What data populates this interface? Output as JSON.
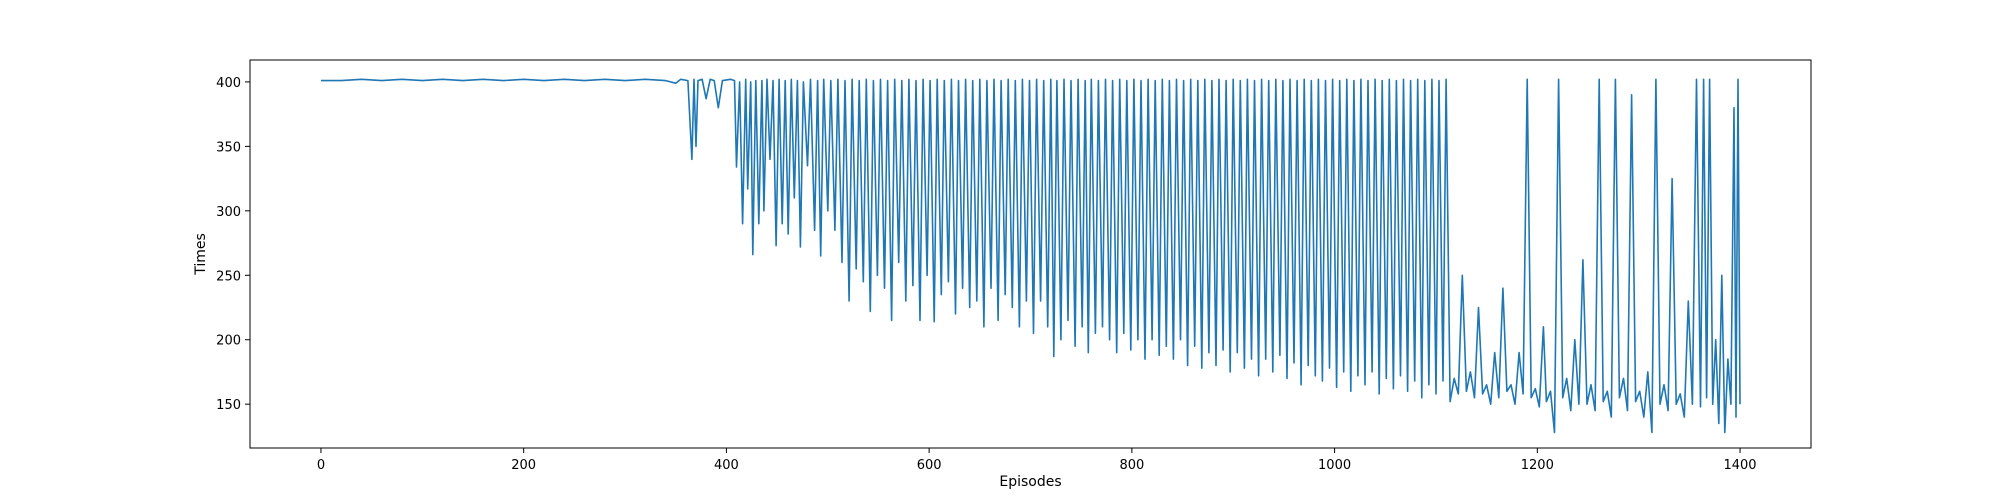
{
  "chart_data": {
    "type": "line",
    "title": "",
    "xlabel": "Episodes",
    "ylabel": "Times",
    "xlim": [
      -70,
      1470
    ],
    "ylim": [
      116,
      417
    ],
    "x_ticks": [
      0,
      200,
      400,
      600,
      800,
      1000,
      1200,
      1400
    ],
    "y_ticks": [
      150,
      200,
      250,
      300,
      350,
      400
    ],
    "grid": false,
    "legend": "none",
    "series": [
      {
        "color": "#1f77b4",
        "points": [
          [
            0,
            401
          ],
          [
            20,
            401
          ],
          [
            40,
            402
          ],
          [
            60,
            401
          ],
          [
            80,
            402
          ],
          [
            100,
            401
          ],
          [
            120,
            402
          ],
          [
            140,
            401
          ],
          [
            160,
            402
          ],
          [
            180,
            401
          ],
          [
            200,
            402
          ],
          [
            220,
            401
          ],
          [
            240,
            402
          ],
          [
            260,
            401
          ],
          [
            280,
            402
          ],
          [
            300,
            401
          ],
          [
            320,
            402
          ],
          [
            340,
            401
          ],
          [
            350,
            399
          ],
          [
            355,
            402
          ],
          [
            362,
            401
          ],
          [
            366,
            340
          ],
          [
            368,
            402
          ],
          [
            370,
            350
          ],
          [
            372,
            401
          ],
          [
            376,
            402
          ],
          [
            380,
            387
          ],
          [
            384,
            402
          ],
          [
            388,
            401
          ],
          [
            392,
            380
          ],
          [
            396,
            401
          ],
          [
            404,
            402
          ],
          [
            408,
            401
          ],
          [
            410,
            334
          ],
          [
            413,
            400
          ],
          [
            416,
            290
          ],
          [
            419,
            402
          ],
          [
            421,
            317
          ],
          [
            424,
            400
          ],
          [
            426,
            266
          ],
          [
            429,
            401
          ],
          [
            432,
            290
          ],
          [
            435,
            401
          ],
          [
            437,
            300
          ],
          [
            440,
            402
          ],
          [
            443,
            340
          ],
          [
            446,
            401
          ],
          [
            449,
            273
          ],
          [
            452,
            402
          ],
          [
            455,
            290
          ],
          [
            458,
            401
          ],
          [
            461,
            282
          ],
          [
            464,
            402
          ],
          [
            467,
            310
          ],
          [
            470,
            401
          ],
          [
            473,
            272
          ],
          [
            476,
            400
          ],
          [
            480,
            335
          ],
          [
            483,
            402
          ],
          [
            487,
            285
          ],
          [
            490,
            401
          ],
          [
            493,
            265
          ],
          [
            496,
            402
          ],
          [
            500,
            300
          ],
          [
            503,
            401
          ],
          [
            507,
            285
          ],
          [
            510,
            402
          ],
          [
            514,
            260
          ],
          [
            517,
            401
          ],
          [
            521,
            230
          ],
          [
            524,
            402
          ],
          [
            528,
            255
          ],
          [
            531,
            401
          ],
          [
            535,
            245
          ],
          [
            538,
            402
          ],
          [
            542,
            222
          ],
          [
            545,
            401
          ],
          [
            549,
            250
          ],
          [
            552,
            402
          ],
          [
            556,
            240
          ],
          [
            559,
            401
          ],
          [
            563,
            215
          ],
          [
            566,
            402
          ],
          [
            570,
            260
          ],
          [
            573,
            401
          ],
          [
            577,
            230
          ],
          [
            580,
            402
          ],
          [
            584,
            242
          ],
          [
            587,
            401
          ],
          [
            591,
            215
          ],
          [
            594,
            402
          ],
          [
            598,
            250
          ],
          [
            601,
            401
          ],
          [
            605,
            214
          ],
          [
            608,
            402
          ],
          [
            612,
            235
          ],
          [
            615,
            401
          ],
          [
            619,
            245
          ],
          [
            622,
            402
          ],
          [
            626,
            220
          ],
          [
            629,
            401
          ],
          [
            633,
            240
          ],
          [
            636,
            402
          ],
          [
            640,
            225
          ],
          [
            643,
            401
          ],
          [
            647,
            230
          ],
          [
            650,
            402
          ],
          [
            654,
            210
          ],
          [
            657,
            401
          ],
          [
            661,
            240
          ],
          [
            664,
            402
          ],
          [
            668,
            215
          ],
          [
            671,
            401
          ],
          [
            675,
            235
          ],
          [
            678,
            402
          ],
          [
            682,
            225
          ],
          [
            685,
            401
          ],
          [
            689,
            210
          ],
          [
            692,
            402
          ],
          [
            696,
            230
          ],
          [
            699,
            401
          ],
          [
            703,
            205
          ],
          [
            706,
            402
          ],
          [
            710,
            230
          ],
          [
            713,
            401
          ],
          [
            717,
            210
          ],
          [
            720,
            402
          ],
          [
            723,
            187
          ],
          [
            726,
            401
          ],
          [
            730,
            200
          ],
          [
            733,
            402
          ],
          [
            737,
            215
          ],
          [
            740,
            401
          ],
          [
            744,
            195
          ],
          [
            747,
            402
          ],
          [
            751,
            210
          ],
          [
            754,
            401
          ],
          [
            757,
            190
          ],
          [
            760,
            402
          ],
          [
            764,
            205
          ],
          [
            767,
            401
          ],
          [
            771,
            210
          ],
          [
            774,
            402
          ],
          [
            778,
            200
          ],
          [
            781,
            401
          ],
          [
            785,
            190
          ],
          [
            788,
            402
          ],
          [
            792,
            205
          ],
          [
            795,
            401
          ],
          [
            799,
            192
          ],
          [
            802,
            402
          ],
          [
            806,
            200
          ],
          [
            809,
            401
          ],
          [
            813,
            185
          ],
          [
            816,
            402
          ],
          [
            820,
            200
          ],
          [
            823,
            401
          ],
          [
            827,
            188
          ],
          [
            830,
            402
          ],
          [
            834,
            195
          ],
          [
            837,
            401
          ],
          [
            841,
            185
          ],
          [
            844,
            402
          ],
          [
            848,
            200
          ],
          [
            851,
            401
          ],
          [
            855,
            180
          ],
          [
            858,
            402
          ],
          [
            862,
            195
          ],
          [
            865,
            401
          ],
          [
            869,
            178
          ],
          [
            872,
            402
          ],
          [
            876,
            190
          ],
          [
            879,
            401
          ],
          [
            883,
            180
          ],
          [
            886,
            402
          ],
          [
            890,
            192
          ],
          [
            893,
            401
          ],
          [
            897,
            175
          ],
          [
            900,
            402
          ],
          [
            904,
            190
          ],
          [
            907,
            401
          ],
          [
            911,
            178
          ],
          [
            914,
            402
          ],
          [
            918,
            185
          ],
          [
            921,
            401
          ],
          [
            925,
            172
          ],
          [
            928,
            402
          ],
          [
            932,
            185
          ],
          [
            935,
            401
          ],
          [
            939,
            175
          ],
          [
            942,
            402
          ],
          [
            946,
            188
          ],
          [
            949,
            401
          ],
          [
            953,
            170
          ],
          [
            956,
            402
          ],
          [
            960,
            182
          ],
          [
            963,
            401
          ],
          [
            967,
            165
          ],
          [
            970,
            402
          ],
          [
            974,
            180
          ],
          [
            977,
            401
          ],
          [
            981,
            172
          ],
          [
            984,
            402
          ],
          [
            988,
            168
          ],
          [
            991,
            401
          ],
          [
            995,
            178
          ],
          [
            998,
            402
          ],
          [
            1002,
            163
          ],
          [
            1005,
            401
          ],
          [
            1009,
            175
          ],
          [
            1012,
            402
          ],
          [
            1016,
            160
          ],
          [
            1019,
            401
          ],
          [
            1023,
            172
          ],
          [
            1026,
            402
          ],
          [
            1030,
            165
          ],
          [
            1033,
            401
          ],
          [
            1037,
            175
          ],
          [
            1040,
            402
          ],
          [
            1044,
            158
          ],
          [
            1047,
            401
          ],
          [
            1051,
            170
          ],
          [
            1054,
            402
          ],
          [
            1058,
            162
          ],
          [
            1061,
            401
          ],
          [
            1065,
            172
          ],
          [
            1068,
            402
          ],
          [
            1072,
            160
          ],
          [
            1075,
            401
          ],
          [
            1079,
            168
          ],
          [
            1082,
            402
          ],
          [
            1086,
            155
          ],
          [
            1089,
            401
          ],
          [
            1093,
            165
          ],
          [
            1096,
            402
          ],
          [
            1100,
            158
          ],
          [
            1103,
            401
          ],
          [
            1107,
            168
          ],
          [
            1110,
            402
          ],
          [
            1114,
            152
          ],
          [
            1118,
            170
          ],
          [
            1122,
            158
          ],
          [
            1126,
            250
          ],
          [
            1130,
            160
          ],
          [
            1134,
            175
          ],
          [
            1138,
            155
          ],
          [
            1142,
            225
          ],
          [
            1146,
            158
          ],
          [
            1150,
            165
          ],
          [
            1154,
            150
          ],
          [
            1158,
            190
          ],
          [
            1162,
            155
          ],
          [
            1166,
            240
          ],
          [
            1170,
            160
          ],
          [
            1174,
            165
          ],
          [
            1178,
            150
          ],
          [
            1182,
            190
          ],
          [
            1186,
            158
          ],
          [
            1190,
            402
          ],
          [
            1194,
            155
          ],
          [
            1198,
            162
          ],
          [
            1202,
            148
          ],
          [
            1206,
            210
          ],
          [
            1209,
            152
          ],
          [
            1213,
            160
          ],
          [
            1217,
            128
          ],
          [
            1221,
            402
          ],
          [
            1225,
            155
          ],
          [
            1229,
            170
          ],
          [
            1233,
            145
          ],
          [
            1237,
            200
          ],
          [
            1241,
            150
          ],
          [
            1245,
            262
          ],
          [
            1249,
            150
          ],
          [
            1253,
            165
          ],
          [
            1257,
            145
          ],
          [
            1261,
            402
          ],
          [
            1265,
            152
          ],
          [
            1269,
            160
          ],
          [
            1273,
            140
          ],
          [
            1277,
            402
          ],
          [
            1281,
            155
          ],
          [
            1285,
            170
          ],
          [
            1289,
            145
          ],
          [
            1293,
            390
          ],
          [
            1297,
            152
          ],
          [
            1301,
            160
          ],
          [
            1305,
            140
          ],
          [
            1309,
            175
          ],
          [
            1313,
            128
          ],
          [
            1317,
            402
          ],
          [
            1321,
            150
          ],
          [
            1325,
            165
          ],
          [
            1329,
            145
          ],
          [
            1333,
            325
          ],
          [
            1337,
            150
          ],
          [
            1341,
            158
          ],
          [
            1345,
            140
          ],
          [
            1349,
            230
          ],
          [
            1353,
            150
          ],
          [
            1357,
            402
          ],
          [
            1361,
            148
          ],
          [
            1364,
            402
          ],
          [
            1367,
            155
          ],
          [
            1370,
            402
          ],
          [
            1373,
            150
          ],
          [
            1376,
            200
          ],
          [
            1379,
            135
          ],
          [
            1382,
            250
          ],
          [
            1385,
            128
          ],
          [
            1388,
            185
          ],
          [
            1391,
            150
          ],
          [
            1394,
            380
          ],
          [
            1396,
            140
          ],
          [
            1398,
            402
          ],
          [
            1400,
            150
          ]
        ]
      }
    ]
  }
}
